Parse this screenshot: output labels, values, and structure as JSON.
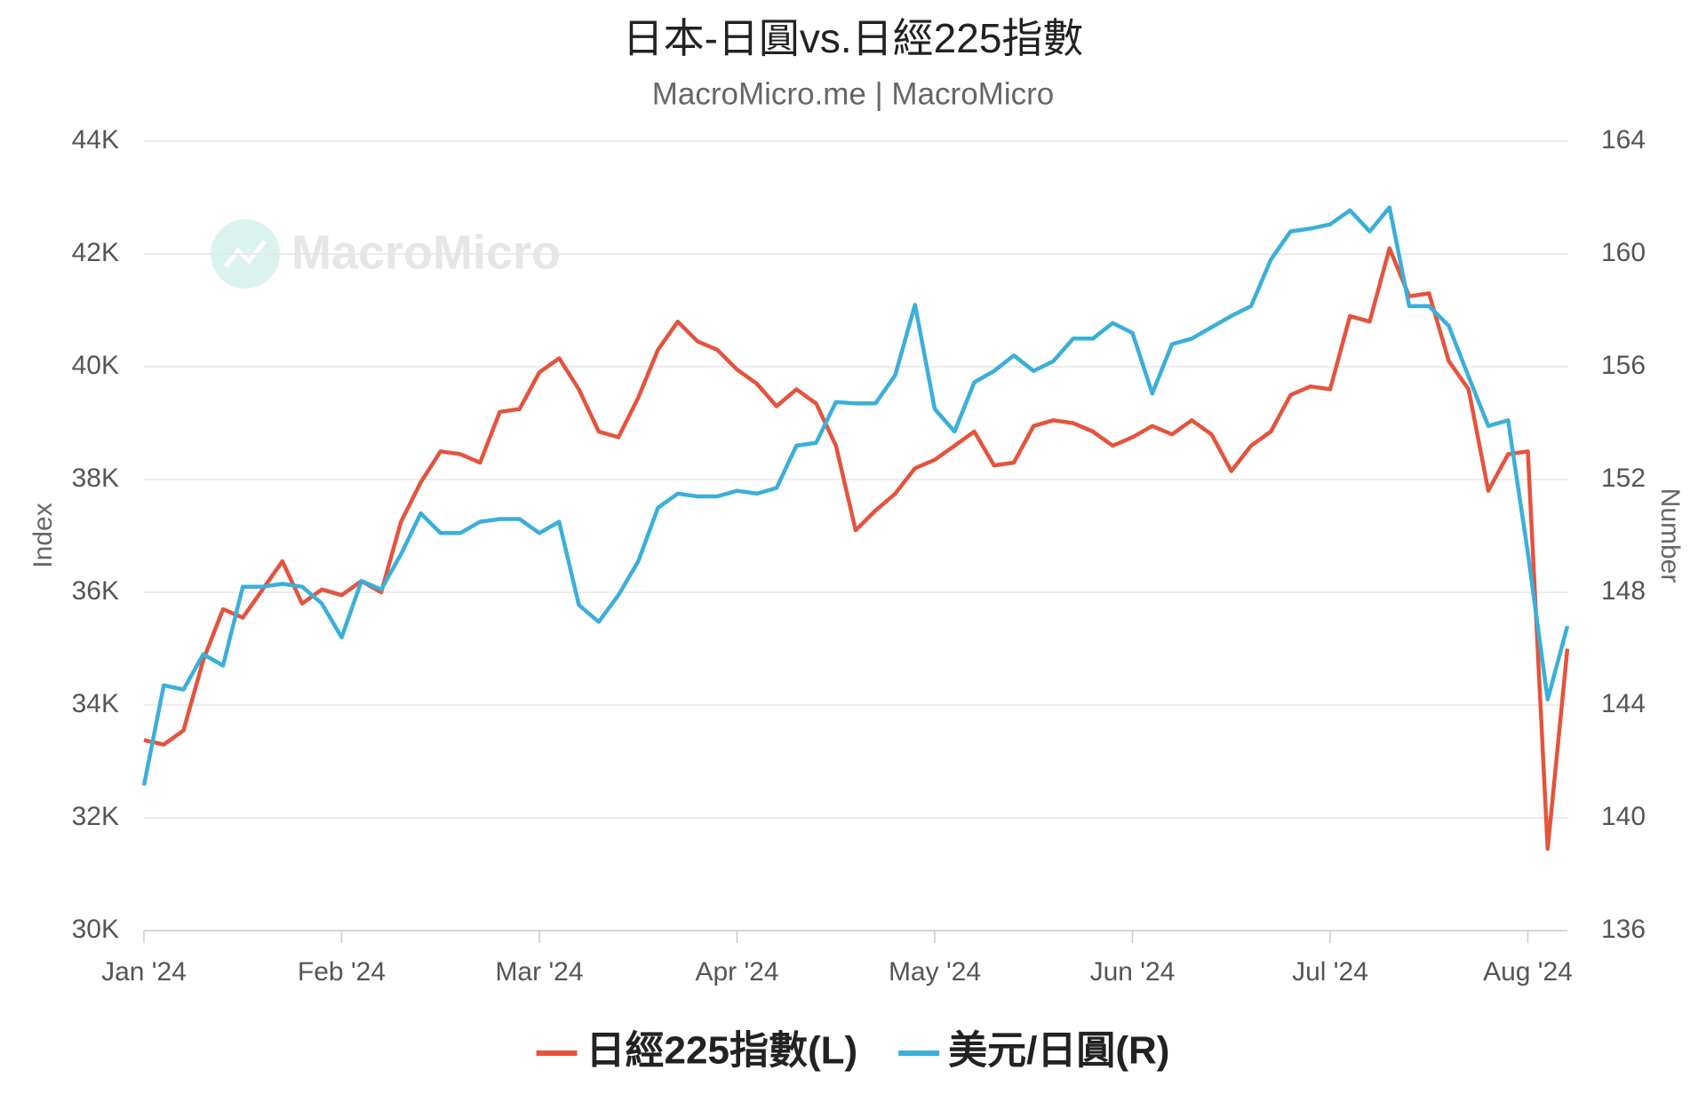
{
  "chart_data": {
    "type": "line",
    "title": "日本-日圓vs.日經225指數",
    "subtitle": "MacroMicro.me | MacroMicro",
    "watermark": "MacroMicro",
    "ylabel": "Index",
    "y2label": "Number",
    "categories": [
      "Jan '24",
      null,
      null,
      null,
      null,
      null,
      null,
      null,
      null,
      null,
      "Feb '24",
      null,
      null,
      null,
      null,
      null,
      null,
      null,
      null,
      null,
      "Mar '24",
      null,
      null,
      null,
      null,
      null,
      null,
      null,
      null,
      null,
      "Apr '24",
      null,
      null,
      null,
      null,
      null,
      null,
      null,
      null,
      null,
      "May '24",
      null,
      null,
      null,
      null,
      null,
      null,
      null,
      null,
      null,
      "Jun '24",
      null,
      null,
      null,
      null,
      null,
      null,
      null,
      null,
      null,
      "Jul '24",
      null,
      null,
      null,
      null,
      null,
      null,
      null,
      null,
      null,
      "Aug '24",
      null,
      null
    ],
    "series": [
      {
        "name": "日經225指數(L)",
        "color": "#e5533d",
        "values": [
          33380,
          33300,
          33550,
          34800,
          35700,
          35550,
          36050,
          36550,
          35800,
          36050,
          35950,
          36200,
          36000,
          37250,
          37950,
          38500,
          38450,
          38300,
          39200,
          39250,
          39900,
          40150,
          39600,
          38850,
          38750,
          39450,
          40300,
          40800,
          40450,
          40300,
          39950,
          39700,
          39300,
          39600,
          39350,
          38600,
          37100,
          37450,
          37750,
          38200,
          38350,
          38600,
          38850,
          38250,
          38300,
          38950,
          39050,
          39000,
          38850,
          38600,
          38750,
          38950,
          38800,
          39050,
          38800,
          38150,
          38600,
          38850,
          39500,
          39650,
          39600,
          40900,
          40800,
          42100,
          41250,
          41300,
          40100,
          39600,
          37800,
          38450,
          38500,
          31450,
          35000
        ]
      },
      {
        "name": "美元/日圓(R)",
        "color": "#3aafd9",
        "axis": "y2",
        "values": [
          141.15,
          144.7,
          144.55,
          145.8,
          145.4,
          148.2,
          148.2,
          148.3,
          148.2,
          147.6,
          146.4,
          148.4,
          148.1,
          149.35,
          150.8,
          150.1,
          150.1,
          150.5,
          150.6,
          150.6,
          150.1,
          150.5,
          147.55,
          146.95,
          147.9,
          149.1,
          151.0,
          151.5,
          151.4,
          151.4,
          151.6,
          151.5,
          151.7,
          153.2,
          153.3,
          154.75,
          154.7,
          154.7,
          155.7,
          158.2,
          154.5,
          153.7,
          155.45,
          155.85,
          156.4,
          155.85,
          156.2,
          157.0,
          157.0,
          157.55,
          157.2,
          155.05,
          156.8,
          157.0,
          157.4,
          157.8,
          158.15,
          159.8,
          160.8,
          160.9,
          161.05,
          161.55,
          160.8,
          161.65,
          158.15,
          158.15,
          157.45,
          155.65,
          153.9,
          154.1,
          149.4,
          144.2,
          146.8
        ]
      }
    ],
    "ylim": [
      30000,
      44000
    ],
    "yticks": [
      {
        "value": 30000,
        "label": "30K"
      },
      {
        "value": 32000,
        "label": "32K"
      },
      {
        "value": 34000,
        "label": "34K"
      },
      {
        "value": 36000,
        "label": "36K"
      },
      {
        "value": 38000,
        "label": "38K"
      },
      {
        "value": 40000,
        "label": "40K"
      },
      {
        "value": 42000,
        "label": "42K"
      },
      {
        "value": 44000,
        "label": "44K"
      }
    ],
    "y2lim": [
      136,
      164
    ],
    "y2ticks": [
      136,
      140,
      144,
      148,
      152,
      156,
      160,
      164
    ],
    "grid": true,
    "legend": "bottom"
  }
}
